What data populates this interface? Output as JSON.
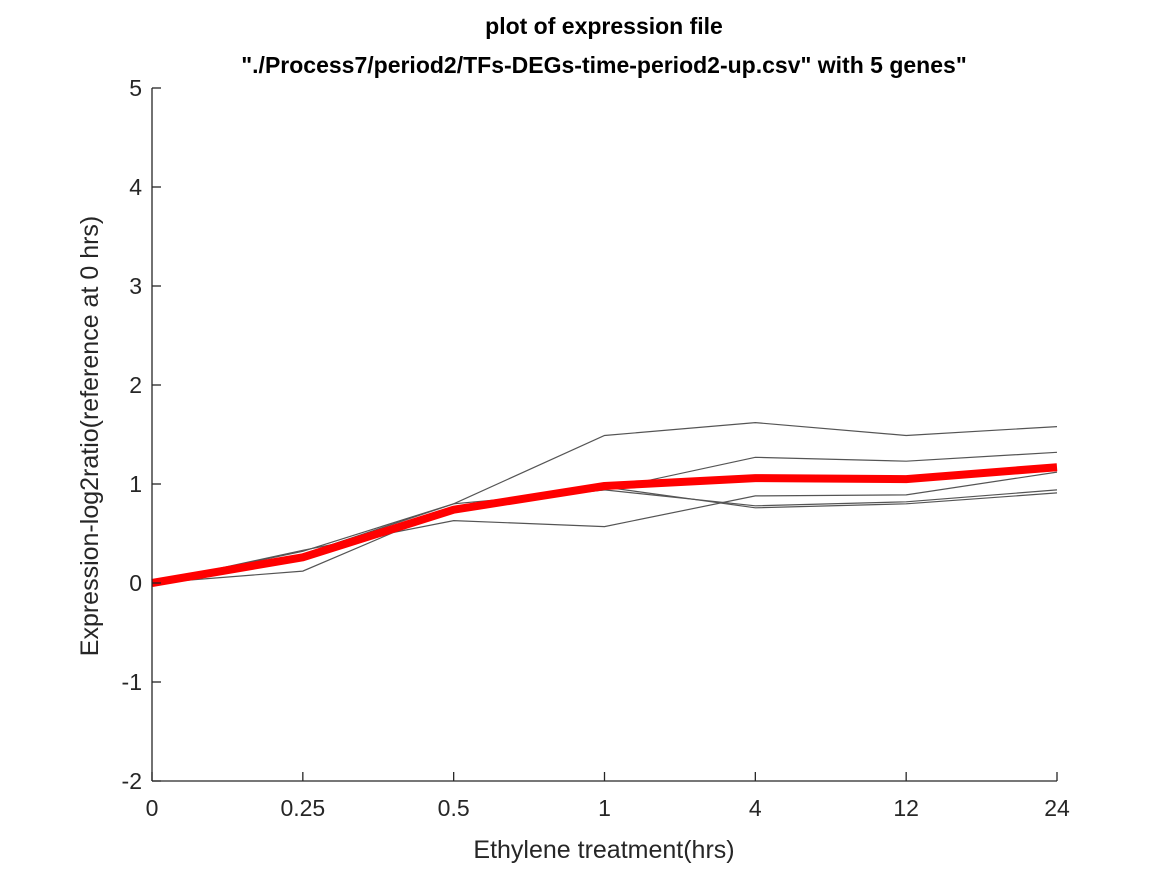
{
  "chart_data": {
    "type": "line",
    "title_lines": [
      "plot of expression file",
      "\"./Process7/period2/TFs-DEGs-time-period2-up.csv\" with 5 genes\""
    ],
    "xlabel": "Ethylene treatment(hrs)",
    "ylabel": "Expression-log2ratio(reference at 0 hrs)",
    "categories": [
      "0",
      "0.25",
      "0.5",
      "1",
      "4",
      "12",
      "24"
    ],
    "ylim": [
      -2,
      5
    ],
    "yticks": [
      "-2",
      "-1",
      "0",
      "1",
      "2",
      "3",
      "4",
      "5"
    ],
    "grid": false,
    "colors": {
      "gene": "#555555",
      "mean": "#ff0000",
      "axis": "#262626"
    },
    "series": [
      {
        "values": [
          0,
          0.32,
          0.8,
          1.49,
          1.62,
          1.49,
          1.58
        ]
      },
      {
        "values": [
          0,
          0.29,
          0.8,
          0.94,
          1.27,
          1.23,
          1.32
        ]
      },
      {
        "values": [
          0,
          0.33,
          0.63,
          0.57,
          0.88,
          0.89,
          1.12
        ]
      },
      {
        "values": [
          0,
          0.12,
          0.77,
          0.94,
          0.78,
          0.82,
          0.94
        ]
      },
      {
        "values": [
          0,
          0.24,
          0.75,
          0.97,
          0.76,
          0.8,
          0.91
        ]
      }
    ],
    "mean_series": {
      "values": [
        0,
        0.26,
        0.74,
        0.98,
        1.06,
        1.05,
        1.17
      ]
    }
  }
}
